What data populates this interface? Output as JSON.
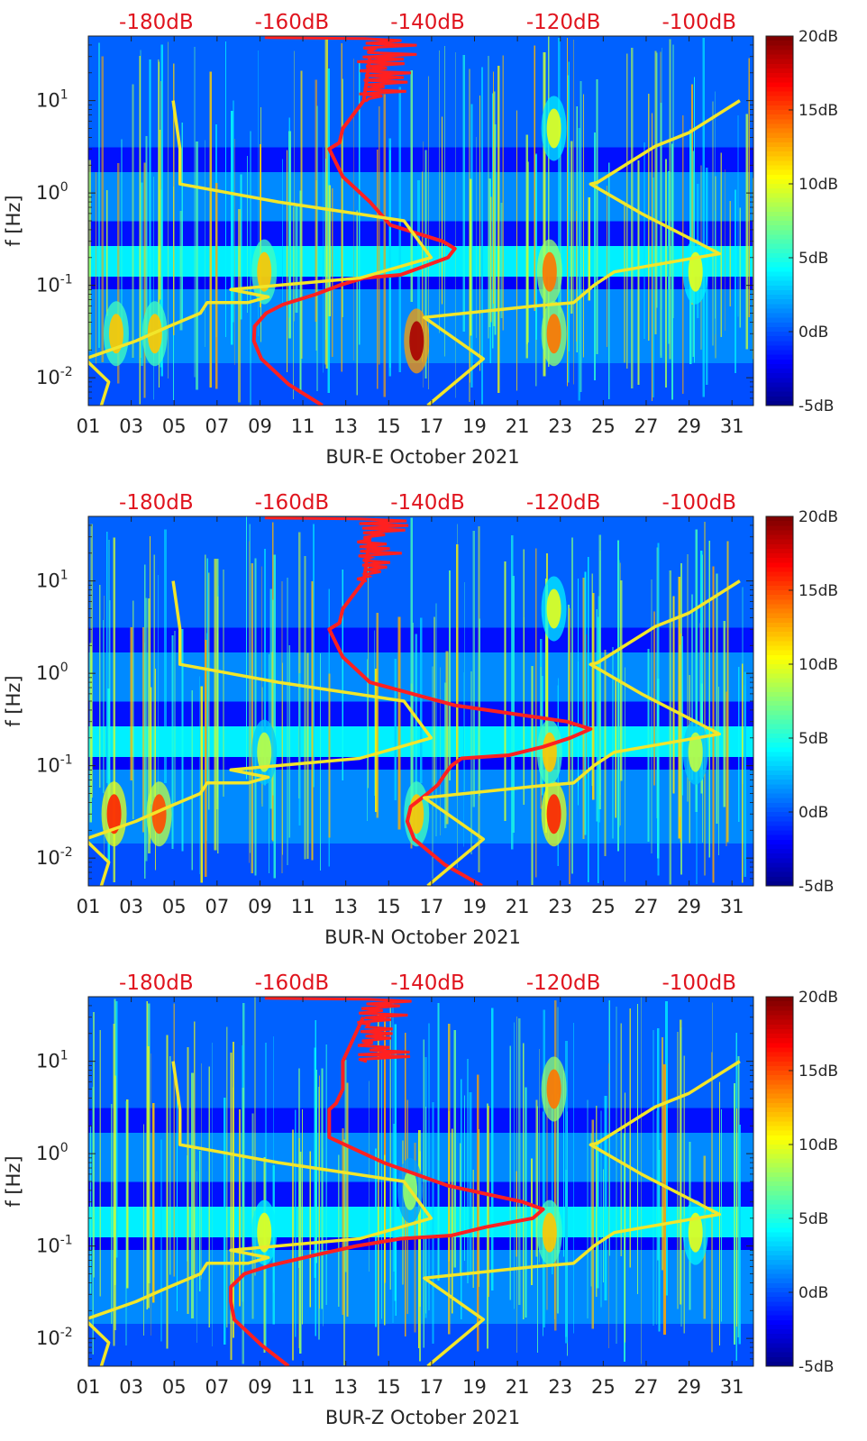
{
  "figure": {
    "panels": [
      {
        "xlabel": "BUR-E October 2021"
      },
      {
        "xlabel": "BUR-N October 2021"
      },
      {
        "xlabel": "BUR-Z October 2021"
      }
    ],
    "ylabel": "f [Hz]",
    "x_ticks": [
      "01",
      "03",
      "05",
      "07",
      "09",
      "11",
      "13",
      "15",
      "17",
      "19",
      "21",
      "23",
      "25",
      "27",
      "29",
      "31"
    ],
    "y_ticks": [
      "10",
      "10",
      "10",
      "10"
    ],
    "y_tick_exponents": [
      "1",
      "0",
      "-1",
      "-2"
    ],
    "top_ticks": [
      "-180dB",
      "-160dB",
      "-140dB",
      "-120dB",
      "-100dB"
    ],
    "colorbar_ticks": [
      "20dB",
      "15dB",
      "10dB",
      "5dB",
      "0dB",
      "-5dB"
    ]
  },
  "chart_data": [
    {
      "type": "heatmap",
      "title": "",
      "xlabel": "BUR-E October 2021",
      "ylabel": "f [Hz]",
      "x_unit": "day of October 2021",
      "xlim": [
        1,
        32
      ],
      "ylim_hz": [
        0.005,
        50
      ],
      "y_scale": "log",
      "colorbar": {
        "range_db": [
          -5,
          20
        ],
        "ticks": [
          "20dB",
          "15dB",
          "10dB",
          "5dB",
          "0dB",
          "-5dB"
        ],
        "colormap": "jet"
      },
      "top_axis": {
        "ticks": [
          "-180dB",
          "-160dB",
          "-140dB",
          "-120dB",
          "-100dB"
        ],
        "range_db": [
          -190,
          -92
        ],
        "color": "#e0141e"
      },
      "hot_spots": [
        {
          "day": 16.3,
          "f_hz": 0.025,
          "db": 19
        },
        {
          "day": 22.7,
          "f_hz": 0.03,
          "db": 14
        },
        {
          "day": 2.3,
          "f_hz": 0.03,
          "db": 12
        },
        {
          "day": 4.1,
          "f_hz": 0.03,
          "db": 12
        },
        {
          "day": 22.7,
          "f_hz": 5,
          "db": 10
        },
        {
          "day": 9.2,
          "f_hz": 0.14,
          "db": 12
        },
        {
          "day": 22.5,
          "f_hz": 0.14,
          "db": 14
        },
        {
          "day": 29.3,
          "f_hz": 0.14,
          "db": 10
        }
      ],
      "series": [
        {
          "color": "#ff2020",
          "x_db": [
            -155.5,
            -160.5,
            -164.5,
            -165.6,
            -165.5,
            -163.8,
            -161.3,
            -156.5,
            -153.0,
            -149.4,
            -144.0,
            -140.6,
            -137.0,
            -136.0,
            -137.8,
            -145.5,
            -148.5,
            -152.5,
            -154.5,
            -153.0,
            -152.5,
            -149.4,
            -148.5
          ],
          "f_hz": [
            0.005,
            0.0085,
            0.016,
            0.025,
            0.036,
            0.05,
            0.062,
            0.08,
            0.1,
            0.12,
            0.13,
            0.16,
            0.2,
            0.25,
            0.3,
            0.45,
            0.8,
            1.5,
            3,
            3.5,
            5,
            10,
            30
          ]
        },
        {
          "color": "#f2e62a",
          "x_db": [
            -188.5,
            -187.0,
            -190.5,
            -183.0,
            -178.5,
            -173.5,
            -172.5,
            -166.5,
            -163.5,
            -169.0,
            -150.0,
            -144.0,
            -139.5,
            -143.5,
            -162.0,
            -176.5,
            -176.5,
            -177.5
          ],
          "f_hz": [
            0.004,
            0.009,
            0.016,
            0.025,
            0.035,
            0.05,
            0.065,
            0.065,
            0.075,
            0.09,
            0.12,
            0.16,
            0.2,
            0.5,
            0.8,
            1.25,
            3,
            10
          ]
        },
        {
          "color": "#f2e62a",
          "x_db": [
            -140.0,
            -131.8,
            -140.5,
            -124.0,
            -118.5,
            -115.5,
            -112.5,
            -97.0,
            -108.5,
            -116.0,
            -115.0,
            -106.5,
            -101.5,
            -94.0
          ],
          "f_hz": [
            0.005,
            0.016,
            0.045,
            0.06,
            0.065,
            0.1,
            0.14,
            0.22,
            0.6,
            1.25,
            1.3,
            3.2,
            4.5,
            10
          ]
        }
      ]
    },
    {
      "type": "heatmap",
      "title": "",
      "xlabel": "BUR-N October 2021",
      "ylabel": "f [Hz]",
      "x_unit": "day of October 2021",
      "xlim": [
        1,
        32
      ],
      "ylim_hz": [
        0.005,
        50
      ],
      "y_scale": "log",
      "colorbar": {
        "range_db": [
          -5,
          20
        ],
        "ticks": [
          "20dB",
          "15dB",
          "10dB",
          "5dB",
          "0dB",
          "-5dB"
        ],
        "colormap": "jet"
      },
      "top_axis": {
        "ticks": [
          "-180dB",
          "-160dB",
          "-140dB",
          "-120dB",
          "-100dB"
        ],
        "range_db": [
          -190,
          -92
        ],
        "color": "#e0141e"
      },
      "hot_spots": [
        {
          "day": 2.2,
          "f_hz": 0.03,
          "db": 16
        },
        {
          "day": 4.3,
          "f_hz": 0.03,
          "db": 15
        },
        {
          "day": 22.7,
          "f_hz": 0.03,
          "db": 16
        },
        {
          "day": 16.3,
          "f_hz": 0.03,
          "db": 12
        },
        {
          "day": 22.7,
          "f_hz": 5,
          "db": 10
        },
        {
          "day": 9.2,
          "f_hz": 0.14,
          "db": 9
        },
        {
          "day": 22.5,
          "f_hz": 0.14,
          "db": 12
        },
        {
          "day": 29.3,
          "f_hz": 0.14,
          "db": 9
        }
      ],
      "series": [
        {
          "color": "#ff2020",
          "x_db": [
            -132.0,
            -137.5,
            -142.0,
            -143.0,
            -142.5,
            -140.0,
            -138.5,
            -137.5,
            -136.5,
            -135.0,
            -128.0,
            -123.0,
            -119.0,
            -116.0,
            -119.5,
            -136.0,
            -148.5,
            -152.5,
            -154.5,
            -153.0,
            -152.5,
            -149.4,
            -148.5
          ],
          "f_hz": [
            0.005,
            0.0085,
            0.016,
            0.025,
            0.036,
            0.05,
            0.062,
            0.08,
            0.1,
            0.12,
            0.13,
            0.16,
            0.2,
            0.25,
            0.3,
            0.45,
            0.8,
            1.5,
            3,
            3.5,
            5,
            10,
            30
          ]
        },
        {
          "color": "#f2e62a",
          "x_db": [
            -188.5,
            -187.0,
            -190.5,
            -183.0,
            -178.5,
            -173.5,
            -172.5,
            -166.5,
            -163.5,
            -169.0,
            -150.0,
            -144.0,
            -139.5,
            -143.5,
            -162.0,
            -176.5,
            -176.5,
            -177.5
          ],
          "f_hz": [
            0.004,
            0.009,
            0.016,
            0.025,
            0.035,
            0.05,
            0.065,
            0.065,
            0.075,
            0.09,
            0.12,
            0.16,
            0.2,
            0.5,
            0.8,
            1.25,
            3,
            10
          ]
        },
        {
          "color": "#f2e62a",
          "x_db": [
            -140.0,
            -131.8,
            -140.5,
            -124.0,
            -118.5,
            -115.5,
            -112.5,
            -97.0,
            -108.5,
            -116.0,
            -115.0,
            -106.5,
            -101.5,
            -94.0
          ],
          "f_hz": [
            0.005,
            0.016,
            0.045,
            0.06,
            0.065,
            0.1,
            0.14,
            0.22,
            0.6,
            1.25,
            1.3,
            3.2,
            4.5,
            10
          ]
        }
      ]
    },
    {
      "type": "heatmap",
      "title": "",
      "xlabel": "BUR-Z October 2021",
      "ylabel": "f [Hz]",
      "x_unit": "day of October 2021",
      "xlim": [
        1,
        32
      ],
      "ylim_hz": [
        0.005,
        50
      ],
      "y_scale": "log",
      "colorbar": {
        "range_db": [
          -5,
          20
        ],
        "ticks": [
          "20dB",
          "15dB",
          "10dB",
          "5dB",
          "0dB",
          "-5dB"
        ],
        "colormap": "jet"
      },
      "top_axis": {
        "ticks": [
          "-180dB",
          "-160dB",
          "-140dB",
          "-120dB",
          "-100dB"
        ],
        "range_db": [
          -190,
          -92
        ],
        "color": "#e0141e"
      },
      "hot_spots": [
        {
          "day": 22.7,
          "f_hz": 5,
          "db": 14
        },
        {
          "day": 9.2,
          "f_hz": 0.14,
          "db": 10
        },
        {
          "day": 22.5,
          "f_hz": 0.14,
          "db": 12
        },
        {
          "day": 29.3,
          "f_hz": 0.14,
          "db": 10
        },
        {
          "day": 16.0,
          "f_hz": 0.4,
          "db": 8
        }
      ],
      "series": [
        {
          "color": "#ff2020",
          "x_db": [
            -160.5,
            -164.5,
            -168.5,
            -169.0,
            -169.0,
            -167.0,
            -163.0,
            -156.5,
            -150.5,
            -144.0,
            -136.5,
            -131.5,
            -124.5,
            -123.0,
            -126.0,
            -137.0,
            -146.5,
            -154.5,
            -154.5,
            -153.5,
            -152.5,
            -152.5,
            -149.5
          ],
          "f_hz": [
            0.005,
            0.0085,
            0.016,
            0.025,
            0.036,
            0.05,
            0.062,
            0.08,
            0.1,
            0.12,
            0.13,
            0.16,
            0.2,
            0.25,
            0.3,
            0.45,
            0.8,
            1.5,
            3,
            3.5,
            5,
            10,
            30
          ]
        },
        {
          "color": "#f2e62a",
          "x_db": [
            -188.5,
            -187.0,
            -190.5,
            -183.0,
            -178.5,
            -173.5,
            -172.5,
            -166.5,
            -163.5,
            -169.0,
            -150.0,
            -144.0,
            -139.5,
            -143.5,
            -162.0,
            -176.5,
            -176.5,
            -177.5
          ],
          "f_hz": [
            0.004,
            0.009,
            0.016,
            0.025,
            0.035,
            0.05,
            0.065,
            0.065,
            0.075,
            0.09,
            0.12,
            0.16,
            0.2,
            0.5,
            0.8,
            1.25,
            3,
            10
          ]
        },
        {
          "color": "#f2e62a",
          "x_db": [
            -140.0,
            -131.8,
            -140.5,
            -124.0,
            -118.5,
            -115.5,
            -112.5,
            -97.0,
            -108.5,
            -116.0,
            -115.0,
            -106.5,
            -101.5,
            -94.0
          ],
          "f_hz": [
            0.005,
            0.016,
            0.045,
            0.06,
            0.065,
            0.1,
            0.14,
            0.22,
            0.6,
            1.25,
            1.3,
            3.2,
            4.5,
            10
          ]
        }
      ]
    }
  ]
}
